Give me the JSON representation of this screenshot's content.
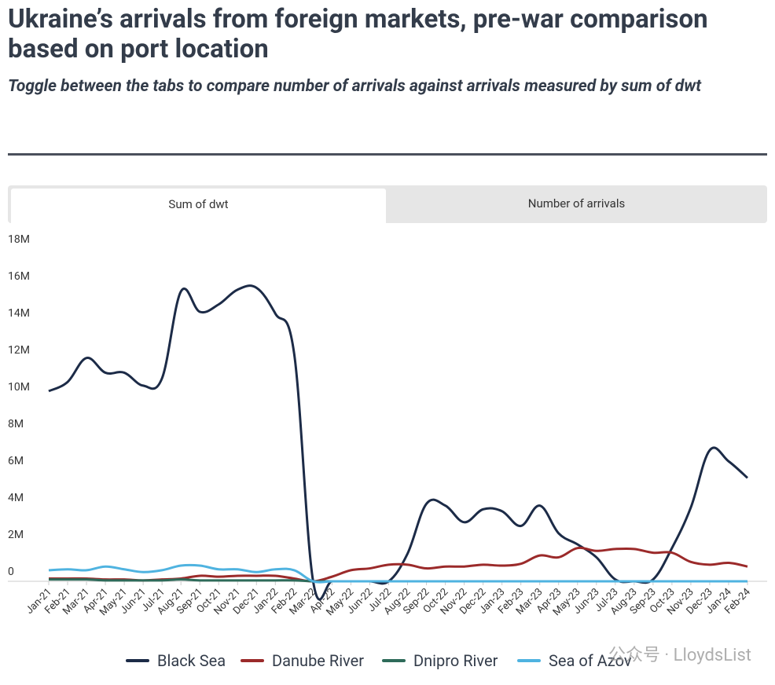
{
  "chart_data": {
    "type": "line",
    "title": "Ukraine’s arrivals from foreign markets, pre-war comparison based on port location",
    "subtitle": "Toggle between the tabs to compare number of arrivals against arrivals measured by sum of dwt",
    "tabs": [
      "Sum of dwt",
      "Number of arrivals"
    ],
    "categories": [
      "Jan-21",
      "Feb-21",
      "Mar-21",
      "Apr-21",
      "May-21",
      "Jun-21",
      "Jul-21",
      "Aug-21",
      "Sep-21",
      "Oct-21",
      "Nov-21",
      "Dec-21",
      "Jan-22",
      "Feb-22",
      "Mar-22",
      "Apr-22",
      "May-22",
      "Jun-22",
      "Jul-22",
      "Aug-22",
      "Sep-22",
      "Oct-22",
      "Nov-22",
      "Dec-22",
      "Jan-23",
      "Feb-23",
      "Mar-23",
      "Apr-23",
      "May-23",
      "Jun-23",
      "Jul-23",
      "Aug-23",
      "Sep-23",
      "Oct-23",
      "Nov-23",
      "Dec-23",
      "Jan-24",
      "Feb-24"
    ],
    "series": [
      {
        "name": "Black Sea",
        "color": "#1c2b47",
        "values": [
          10.3,
          10.8,
          12.1,
          11.3,
          11.3,
          10.6,
          11.0,
          15.7,
          14.6,
          15.0,
          15.8,
          15.9,
          14.5,
          12.3,
          0,
          0,
          0,
          0,
          0,
          1.5,
          4.2,
          4.1,
          3.2,
          3.9,
          3.8,
          3.0,
          4.1,
          2.6,
          2.0,
          1.3,
          0.1,
          0,
          0.1,
          1.8,
          4.0,
          7.1,
          6.5,
          5.6
        ]
      },
      {
        "name": "Danube River",
        "color": "#9b2a2a",
        "values": [
          0.15,
          0.15,
          0.15,
          0.1,
          0.1,
          0.05,
          0.1,
          0.15,
          0.3,
          0.25,
          0.3,
          0.3,
          0.3,
          0.15,
          0,
          0.25,
          0.6,
          0.7,
          0.9,
          0.9,
          0.7,
          0.8,
          0.8,
          0.9,
          0.85,
          0.95,
          1.4,
          1.3,
          1.8,
          1.65,
          1.75,
          1.75,
          1.55,
          1.55,
          1.05,
          0.9,
          1.0,
          0.8
        ]
      },
      {
        "name": "Dnipro River",
        "color": "#2e6b5a",
        "values": [
          0.1,
          0.1,
          0.1,
          0.05,
          0.05,
          0.05,
          0.05,
          0.1,
          0.05,
          0.05,
          0.05,
          0.05,
          0.05,
          0.05,
          0,
          0,
          0,
          0,
          0,
          0,
          0,
          0,
          0,
          0,
          0,
          0,
          0,
          0,
          0,
          0,
          0,
          0,
          0,
          0,
          0,
          0,
          0,
          0
        ]
      },
      {
        "name": "Sea of Azov",
        "color": "#4fb3e0",
        "values": [
          0.6,
          0.65,
          0.6,
          0.8,
          0.65,
          0.5,
          0.6,
          0.85,
          0.85,
          0.65,
          0.65,
          0.5,
          0.65,
          0.6,
          0,
          0,
          0,
          0,
          0,
          0,
          0,
          0,
          0,
          0,
          0,
          0,
          0,
          0,
          0,
          0,
          0,
          0,
          0,
          0,
          0,
          0,
          0,
          0
        ]
      }
    ],
    "ylim": [
      0,
      18
    ],
    "yticks": [
      0,
      {
        "value": 2,
        "label": "2M"
      },
      {
        "value": 4,
        "label": "4M"
      },
      {
        "value": 6,
        "label": "6M"
      },
      {
        "value": 8,
        "label": "8M"
      },
      {
        "value": 10,
        "label": "10M"
      },
      {
        "value": 12,
        "label": "12M"
      },
      {
        "value": 14,
        "label": "14M"
      },
      {
        "value": 16,
        "label": "16M"
      },
      {
        "value": 18,
        "label": "18M"
      }
    ],
    "legend": "bottom",
    "watermark": "公众号 · LloydsList"
  }
}
